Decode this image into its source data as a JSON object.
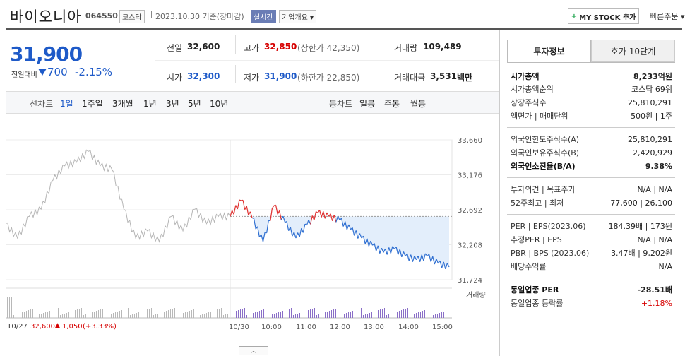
{
  "header": {
    "name": "바이오니아",
    "code": "064550",
    "market": "코스닥",
    "date": "2023.10.30 기준(장마감)",
    "realtime": "실시간",
    "company_info": "기업개요",
    "mystock": "MY STOCK 추가",
    "quick_order": "빠른주문"
  },
  "price": {
    "current": "31,900",
    "change_label": "전일대비",
    "change_value": "700",
    "change_pct": "-2.15%"
  },
  "stats": {
    "prev_label": "전일",
    "prev": "32,600",
    "high_label": "고가",
    "high": "32,850",
    "upper_limit": "(상한가 42,350)",
    "volume_label": "거래량",
    "volume": "109,489",
    "open_label": "시가",
    "open": "32,300",
    "low_label": "저가",
    "low": "31,900",
    "lower_limit": "(하한가 22,850)",
    "amount_label": "거래대금",
    "amount": "3,531",
    "amount_unit": "백만"
  },
  "period": {
    "line_label": "선차트",
    "line_tabs": [
      "1일",
      "1주일",
      "3개월",
      "1년",
      "3년",
      "5년",
      "10년"
    ],
    "candle_label": "봉차트",
    "candle_tabs": [
      "일봉",
      "주봉",
      "월봉"
    ]
  },
  "chart_data": {
    "type": "line",
    "y_ticks": [
      "33,660",
      "33,176",
      "32,692",
      "32,208",
      "31,724"
    ],
    "ylim": [
      31724,
      33660
    ],
    "x_ticks": [
      "10/30",
      "10:00",
      "11:00",
      "12:00",
      "13:00",
      "14:00",
      "15:00"
    ],
    "prev_close": 32600,
    "volume_label": "거래량",
    "prev_day_summary": {
      "date": "10/27",
      "price": "32,600",
      "change": "1,050",
      "pct": "(+3.33%)"
    },
    "series": [
      {
        "values": [
          32600,
          32820,
          32580,
          32250,
          32750,
          32520,
          32300,
          32480,
          32650,
          32600,
          32550,
          32420,
          32300,
          32200,
          32100,
          32150,
          32050,
          32000,
          32050,
          31950,
          31900
        ]
      }
    ],
    "prev_series": [
      {
        "values": [
          32500,
          32300,
          32600,
          32700,
          33100,
          33300,
          33350,
          33500,
          33300,
          33250,
          32700,
          32300,
          32400,
          32250,
          32600,
          32400,
          32700,
          32500,
          32600,
          32600
        ]
      }
    ]
  },
  "invest": {
    "tab_invest": "투자정보",
    "tab_hoga": "호가 10단계",
    "rows": [
      {
        "label": "시가총액",
        "value": "8,233억원",
        "bold": true
      },
      {
        "label": "시가총액순위",
        "value": "코스닥 69위"
      },
      {
        "label": "상장주식수",
        "value": "25,810,291"
      },
      {
        "label": "액면가 | 매매단위",
        "value": "500원 | 1주"
      },
      {
        "label": "외국인한도주식수(A)",
        "value": "25,810,291"
      },
      {
        "label": "외국인보유주식수(B)",
        "value": "2,420,929"
      },
      {
        "label": "외국인소진율(B/A)",
        "value": "9.38%",
        "bold": true
      },
      {
        "label": "투자의견 | 목표주가",
        "value": "N/A | N/A"
      },
      {
        "label": "52주최고 | 최저",
        "value": "77,600 | 26,100"
      },
      {
        "label": "PER | EPS(2023.06)",
        "value": "184.39배 | 173원"
      },
      {
        "label": "추정PER | EPS",
        "value": "N/A | N/A"
      },
      {
        "label": "PBR | BPS (2023.06)",
        "value": "3.47배 | 9,202원"
      },
      {
        "label": "배당수익률",
        "value": "N/A"
      },
      {
        "label": "동일업종 PER",
        "value": "-28.51배",
        "bold": true
      },
      {
        "label": "동일업종 등락률",
        "value": "+1.18%"
      }
    ]
  }
}
